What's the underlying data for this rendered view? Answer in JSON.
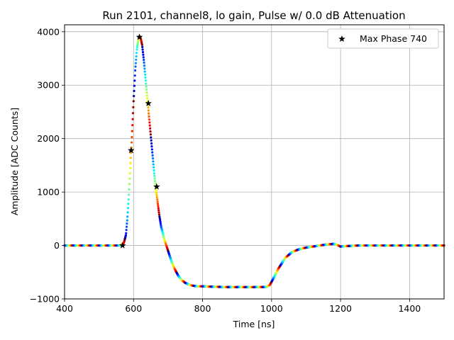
{
  "chart_data": {
    "type": "scatter",
    "title": "Run 2101, channel8, lo gain, Pulse w/ 0.0 dB Attenuation",
    "xlabel": "Time [ns]",
    "ylabel": "Amplitude [ADC Counts]",
    "xlim": [
      400,
      1500
    ],
    "ylim": [
      -1000,
      4130
    ],
    "xticks": [
      400,
      600,
      800,
      1000,
      1200,
      1400
    ],
    "yticks": [
      -1000,
      0,
      1000,
      2000,
      3000,
      4000
    ],
    "xtick_labels": [
      "400",
      "600",
      "800",
      "1000",
      "1200",
      "1400"
    ],
    "ytick_labels": [
      "−1000",
      "0",
      "1000",
      "2000",
      "3000",
      "4000"
    ],
    "grid": true,
    "legend": {
      "position": "top-right",
      "label": "Max Phase 740",
      "marker": "star"
    },
    "colormap": "jet",
    "series": [
      {
        "name": "pulse samples",
        "marker": "dot",
        "x": [
          400,
          500,
          560,
          572,
          578,
          582,
          586,
          590,
          595,
          600,
          605,
          610,
          615,
          620,
          625,
          630,
          635,
          640,
          645,
          650,
          655,
          660,
          665,
          670,
          675,
          680,
          690,
          700,
          710,
          720,
          730,
          740,
          750,
          760,
          770,
          780,
          790,
          800,
          850,
          900,
          950,
          985,
          995,
          1005,
          1020,
          1040,
          1060,
          1080,
          1100,
          1140,
          1160,
          1180,
          1190,
          1200,
          1220,
          1250,
          1300,
          1400,
          1500
        ],
        "y": [
          0,
          0,
          0,
          50,
          200,
          500,
          900,
          1400,
          2000,
          2700,
          3300,
          3700,
          3880,
          3900,
          3750,
          3450,
          3100,
          2750,
          2400,
          2050,
          1700,
          1350,
          1050,
          800,
          550,
          350,
          100,
          -100,
          -300,
          -450,
          -570,
          -650,
          -700,
          -730,
          -750,
          -760,
          -765,
          -765,
          -775,
          -780,
          -780,
          -775,
          -740,
          -620,
          -430,
          -230,
          -120,
          -70,
          -40,
          0,
          20,
          30,
          10,
          -20,
          -10,
          0,
          0,
          0,
          0
        ]
      },
      {
        "name": "Max Phase 740",
        "marker": "star",
        "x": [
          568,
          593,
          617,
          643,
          667
        ],
        "y": [
          0,
          1780,
          3900,
          2660,
          1100
        ]
      }
    ]
  }
}
